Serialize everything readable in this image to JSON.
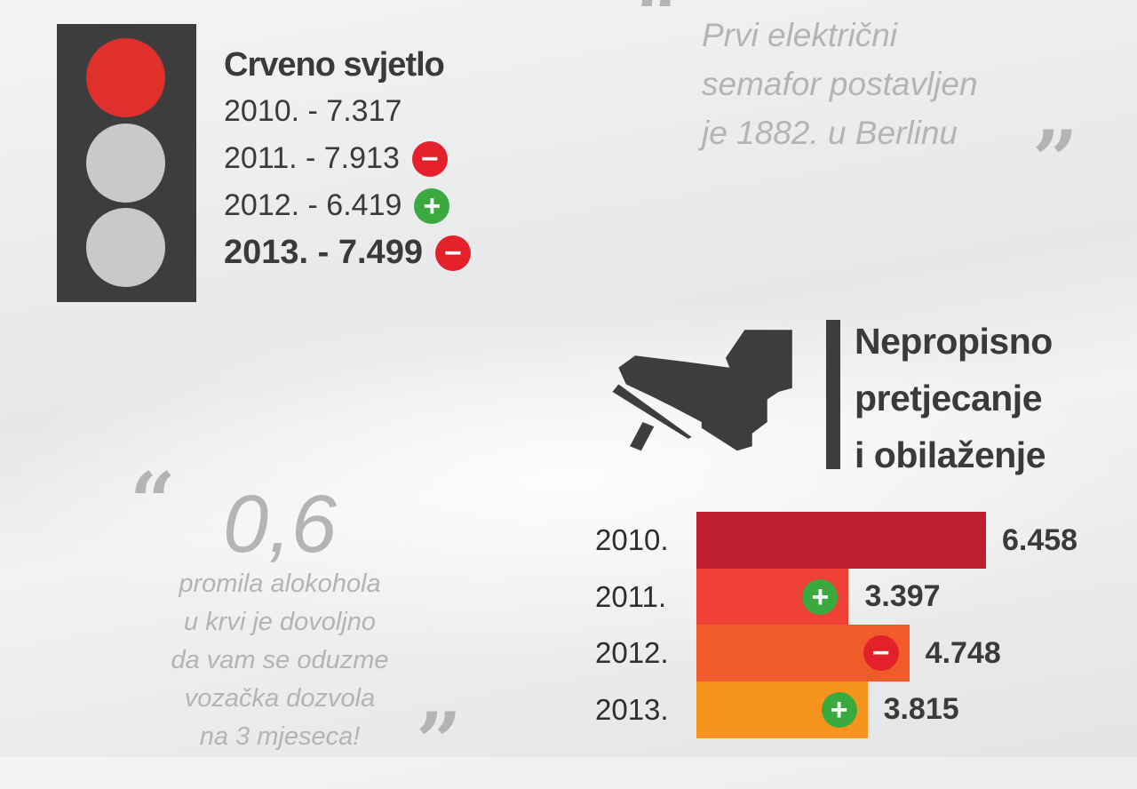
{
  "red_light": {
    "title": "Crveno svjetlo",
    "rows": [
      {
        "text": "2010. - 7.317",
        "change": null,
        "bold": false
      },
      {
        "text": "2011. - 7.913",
        "change": "minus",
        "bold": false
      },
      {
        "text": "2012. - 6.419",
        "change": "plus",
        "bold": false
      },
      {
        "text": "2013. - 7.499",
        "change": "minus",
        "bold": true
      }
    ],
    "colors": {
      "box": "#3d3d3d",
      "red_lamp": "#e0302c",
      "off_lamp": "#c9c9c9"
    }
  },
  "quote_top": {
    "lines": [
      "Prvi električni",
      "semafor postavljen",
      "je 1882. u Berlinu"
    ]
  },
  "quote_bottom": {
    "big_number": "0,6",
    "lines": [
      "promila alokohola",
      "u krvi je dovoljno",
      "da vam se oduzme",
      "vozačka dozvola",
      "na 3 mjeseca!"
    ]
  },
  "overtaking": {
    "title_lines": [
      "Nepropisno",
      "pretjecanje",
      "i obilaženje"
    ],
    "icon": "boot-on-pedal-icon"
  },
  "badges": {
    "plus": "+",
    "minus": "−",
    "plus_color": "#3aaa3f",
    "minus_color": "#e4202a"
  },
  "chart_data": {
    "type": "bar",
    "orientation": "horizontal",
    "categories": [
      "2010.",
      "2011.",
      "2012.",
      "2013."
    ],
    "values": [
      6458,
      3397,
      4748,
      3815
    ],
    "value_labels": [
      "6.458",
      "3.397",
      "4.748",
      "3.815"
    ],
    "changes": [
      null,
      "plus",
      "minus",
      "plus"
    ],
    "colors": [
      "#be1e2d",
      "#ee4036",
      "#f15a29",
      "#f7941d"
    ],
    "title": "",
    "xlabel": "",
    "ylabel": "",
    "grid": false
  }
}
